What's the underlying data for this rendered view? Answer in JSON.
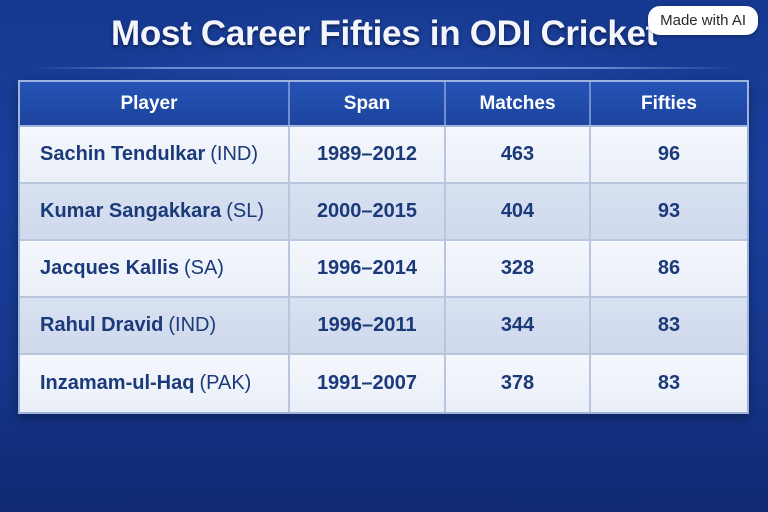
{
  "title": "Most Career Fifties in ODI Cricket",
  "badge": "Made with AI",
  "chart_data": {
    "type": "table",
    "title": "Most Career Fifties in ODI Cricket",
    "columns": [
      "Player",
      "Span",
      "Matches",
      "Fifties"
    ],
    "rows": [
      {
        "player": "Sachin Tendulkar",
        "country": "(IND)",
        "span": "1989–2012",
        "matches": 463,
        "fifties": 96
      },
      {
        "player": "Kumar Sangakkara",
        "country": "(SL)",
        "span": "2000–2015",
        "matches": 404,
        "fifties": 93
      },
      {
        "player": "Jacques Kallis",
        "country": "(SA)",
        "span": "1996–2014",
        "matches": 328,
        "fifties": 86
      },
      {
        "player": "Rahul Dravid",
        "country": "(IND)",
        "span": "1996–2011",
        "matches": 344,
        "fifties": 83
      },
      {
        "player": "Inzamam-ul-Haq",
        "country": "(PAK)",
        "span": "1991–2007",
        "matches": 378,
        "fifties": 83
      }
    ]
  },
  "colors": {
    "background": "#1a3f9c",
    "header": "#2553b6",
    "row_light": "#f4f7fc",
    "row_shade": "#d8e1f1",
    "text": "#1b3a7a"
  }
}
